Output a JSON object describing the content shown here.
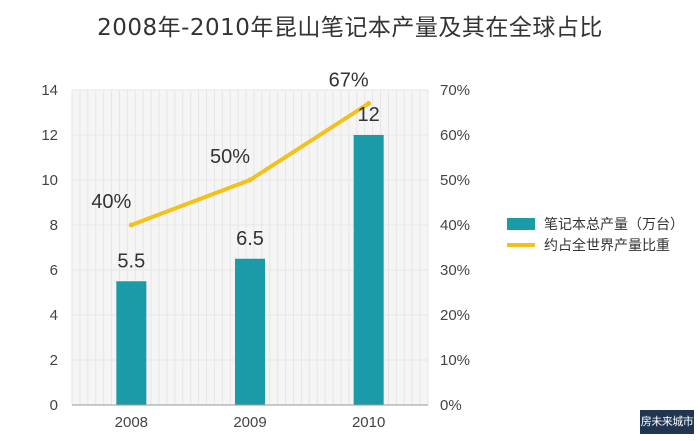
{
  "chart_data": {
    "type": "bar+line",
    "title": "2008年-2010年昆山笔记本产量及其在全球占比",
    "categories": [
      "2008",
      "2009",
      "2010"
    ],
    "series": [
      {
        "name": "笔记本总产量（万台）",
        "type": "bar",
        "axis": "left",
        "color": "#1b9aa8",
        "values": [
          5.5,
          6.5,
          12
        ],
        "labels": [
          "5.5",
          "6.5",
          "12"
        ]
      },
      {
        "name": "约占全世界产量比重",
        "type": "line",
        "axis": "right",
        "color": "#f3c11b",
        "values": [
          40,
          50,
          67
        ],
        "labels": [
          "40%",
          "50%",
          "67%"
        ]
      }
    ],
    "y_left": {
      "min": 0,
      "max": 14,
      "ticks": [
        "0",
        "2",
        "4",
        "6",
        "8",
        "10",
        "12",
        "14"
      ]
    },
    "y_right": {
      "min": 0,
      "max": 70,
      "ticks": [
        "0%",
        "10%",
        "20%",
        "30%",
        "40%",
        "50%",
        "60%",
        "70%"
      ]
    },
    "grid": true,
    "legend_position": "right"
  },
  "watermark": {
    "text": "房未来城市"
  }
}
